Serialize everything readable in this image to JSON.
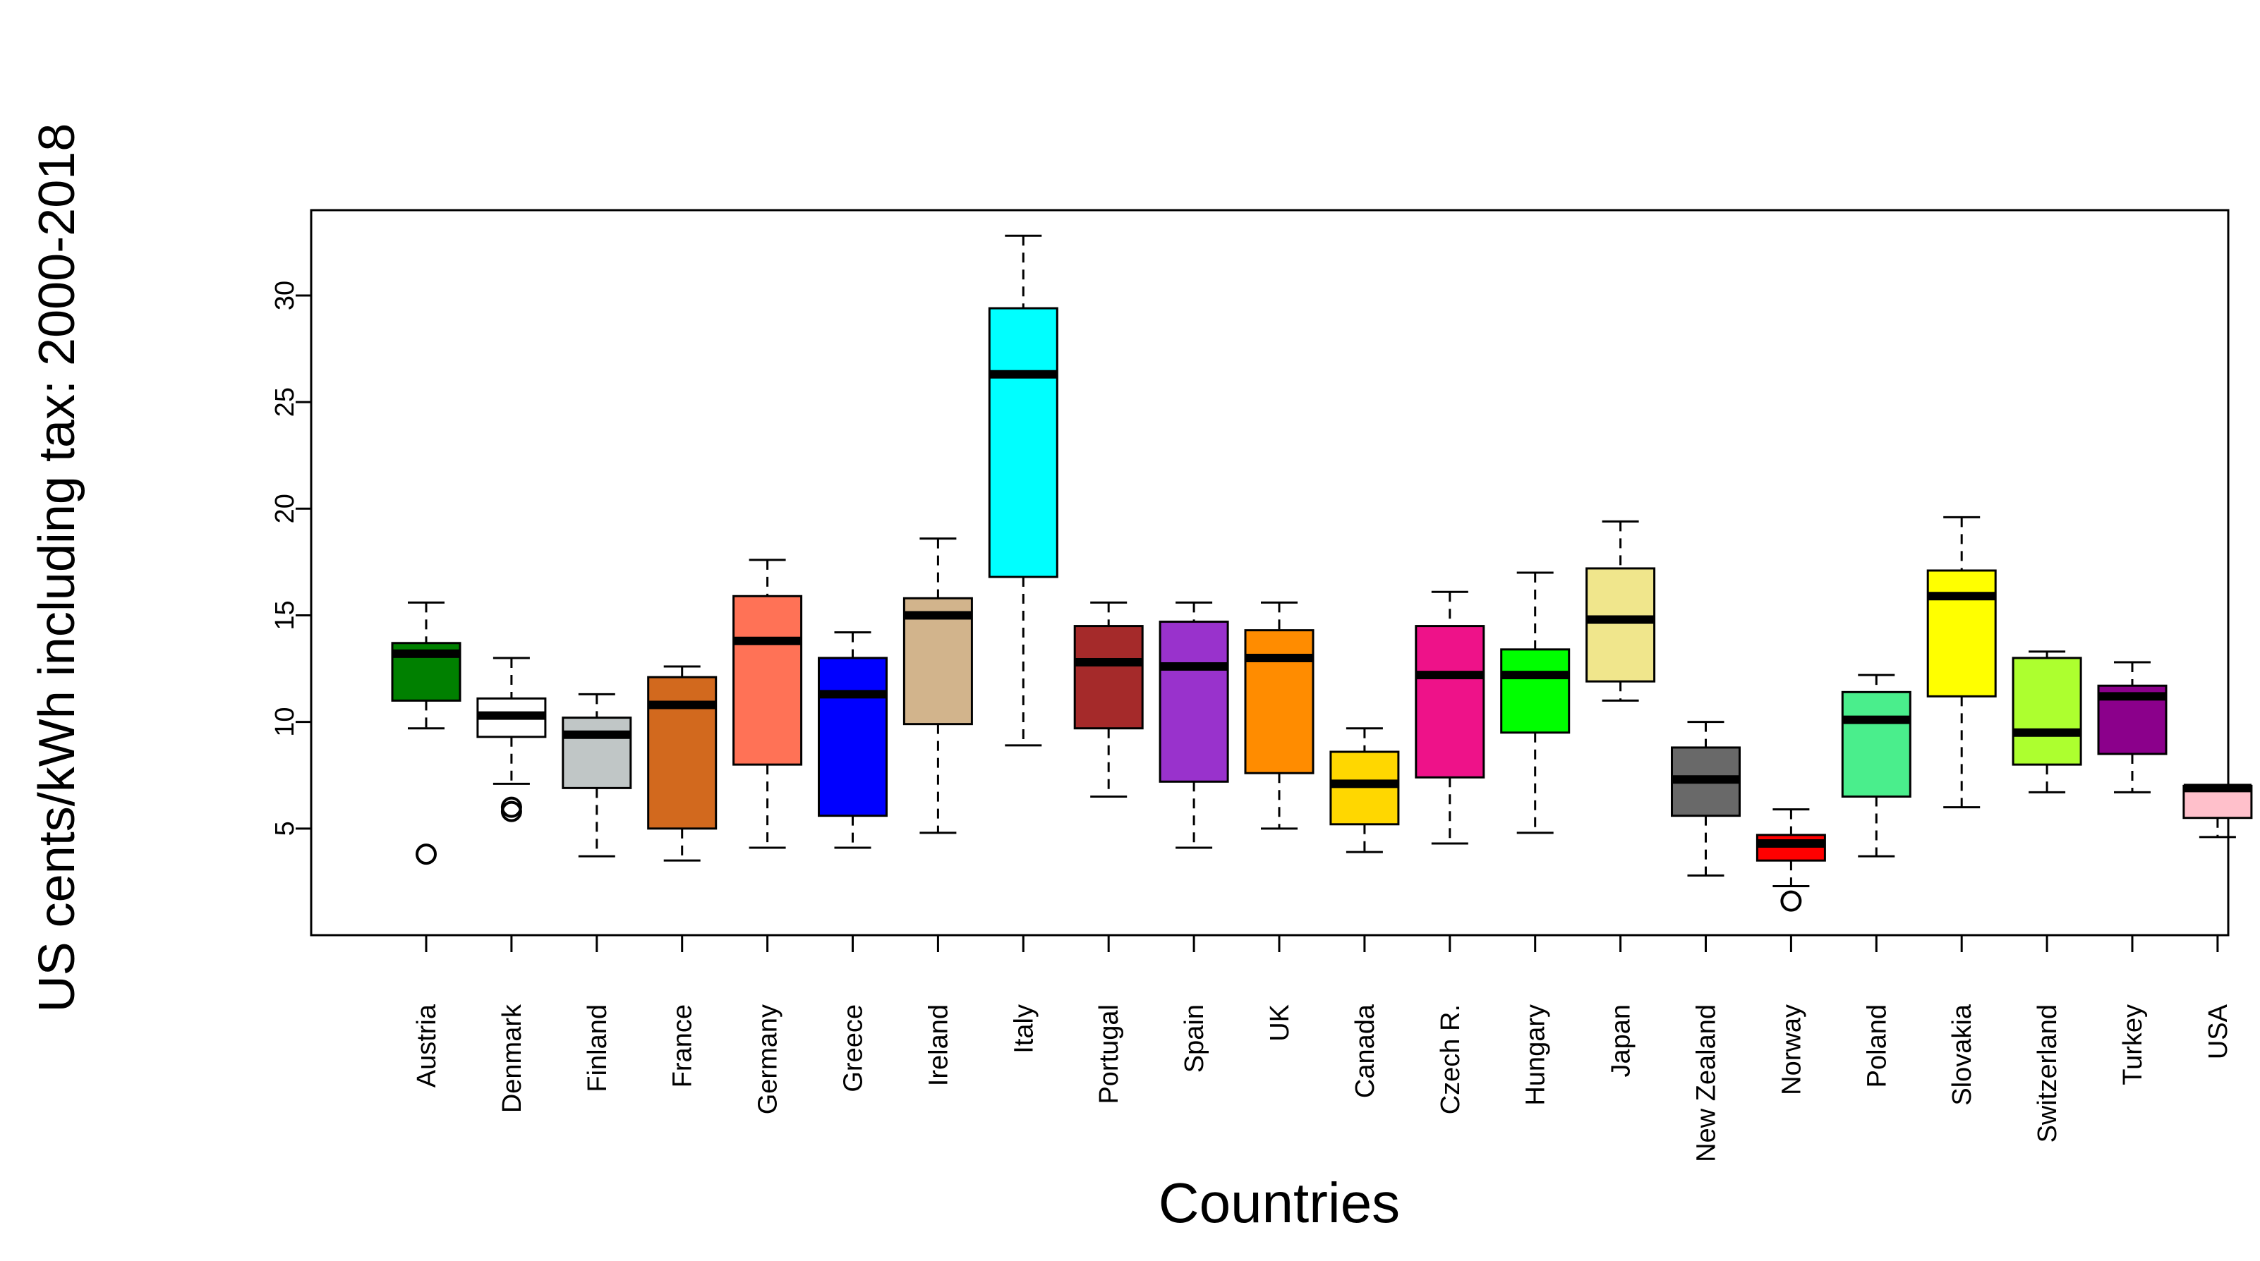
{
  "chart_data": {
    "type": "boxplot",
    "title": "",
    "xlabel": "Countries",
    "ylabel": "US cents/kWh including tax: 2000-2018",
    "ylim": [
      0,
      34
    ],
    "yticks": [
      5,
      10,
      15,
      20,
      25,
      30
    ],
    "grid": false,
    "categories": [
      "Austria",
      "Denmark",
      "Finland",
      "France",
      "Germany",
      "Greece",
      "Ireland",
      "Italy",
      "Portugal",
      "Spain",
      "UK",
      "Canada",
      "Czech R.",
      "Hungary",
      "Japan",
      "New Zealand",
      "Norway",
      "Poland",
      "Slovakia",
      "Switzerland",
      "Turkey",
      "USA"
    ],
    "boxes": [
      {
        "name": "Austria",
        "whisker_low": 9.7,
        "q1": 11.0,
        "median": 13.2,
        "q3": 13.7,
        "whisker_high": 15.6,
        "outliers": [
          3.8
        ],
        "color": "#008000"
      },
      {
        "name": "Denmark",
        "whisker_low": 7.1,
        "q1": 9.3,
        "median": 10.3,
        "q3": 11.1,
        "whisker_high": 13.0,
        "outliers": [
          5.8,
          6.0
        ],
        "color": "#ffffff"
      },
      {
        "name": "Finland",
        "whisker_low": 3.7,
        "q1": 6.9,
        "median": 9.4,
        "q3": 10.2,
        "whisker_high": 11.3,
        "outliers": [],
        "color": "#c0c6c6"
      },
      {
        "name": "France",
        "whisker_low": 3.5,
        "q1": 5.0,
        "median": 10.8,
        "q3": 12.1,
        "whisker_high": 12.6,
        "outliers": [],
        "color": "#d2691e"
      },
      {
        "name": "Germany",
        "whisker_low": 4.1,
        "q1": 8.0,
        "median": 13.8,
        "q3": 15.9,
        "whisker_high": 17.6,
        "outliers": [],
        "color": "#ff7256"
      },
      {
        "name": "Greece",
        "whisker_low": 4.1,
        "q1": 5.6,
        "median": 11.3,
        "q3": 13.0,
        "whisker_high": 14.2,
        "outliers": [],
        "color": "#0000ff"
      },
      {
        "name": "Ireland",
        "whisker_low": 4.8,
        "q1": 9.9,
        "median": 15.0,
        "q3": 15.8,
        "whisker_high": 18.6,
        "outliers": [],
        "color": "#d2b48c"
      },
      {
        "name": "Italy",
        "whisker_low": 8.9,
        "q1": 16.8,
        "median": 26.3,
        "q3": 29.4,
        "whisker_high": 32.8,
        "outliers": [],
        "color": "#00ffff"
      },
      {
        "name": "Portugal",
        "whisker_low": 6.5,
        "q1": 9.7,
        "median": 12.8,
        "q3": 14.5,
        "whisker_high": 15.6,
        "outliers": [],
        "color": "#a52a2a"
      },
      {
        "name": "Spain",
        "whisker_low": 4.1,
        "q1": 7.2,
        "median": 12.6,
        "q3": 14.7,
        "whisker_high": 15.6,
        "outliers": [],
        "color": "#9932cc"
      },
      {
        "name": "UK",
        "whisker_low": 5.0,
        "q1": 7.6,
        "median": 13.0,
        "q3": 14.3,
        "whisker_high": 15.6,
        "outliers": [],
        "color": "#ff8c00"
      },
      {
        "name": "Canada",
        "whisker_low": 3.9,
        "q1": 5.2,
        "median": 7.1,
        "q3": 8.6,
        "whisker_high": 9.7,
        "outliers": [],
        "color": "#ffd700"
      },
      {
        "name": "Czech R.",
        "whisker_low": 4.3,
        "q1": 7.4,
        "median": 12.2,
        "q3": 14.5,
        "whisker_high": 16.1,
        "outliers": [],
        "color": "#ee1289"
      },
      {
        "name": "Hungary",
        "whisker_low": 4.8,
        "q1": 9.5,
        "median": 12.2,
        "q3": 13.4,
        "whisker_high": 17.0,
        "outliers": [],
        "color": "#00ff00"
      },
      {
        "name": "Japan",
        "whisker_low": 11.0,
        "q1": 11.9,
        "median": 14.8,
        "q3": 17.2,
        "whisker_high": 19.4,
        "outliers": [],
        "color": "#f0e68c"
      },
      {
        "name": "New Zealand",
        "whisker_low": 2.8,
        "q1": 5.6,
        "median": 7.3,
        "q3": 8.8,
        "whisker_high": 10.0,
        "outliers": [],
        "color": "#696969"
      },
      {
        "name": "Norway",
        "whisker_low": 2.3,
        "q1": 3.5,
        "median": 4.3,
        "q3": 4.7,
        "whisker_high": 5.9,
        "outliers": [
          1.6
        ],
        "color": "#ff0000"
      },
      {
        "name": "Poland",
        "whisker_low": 3.7,
        "q1": 6.5,
        "median": 10.1,
        "q3": 11.4,
        "whisker_high": 12.2,
        "outliers": [],
        "color": "#4aee8c"
      },
      {
        "name": "Slovakia",
        "whisker_low": 6.0,
        "q1": 11.2,
        "median": 15.9,
        "q3": 17.1,
        "whisker_high": 19.6,
        "outliers": [],
        "color": "#ffff00"
      },
      {
        "name": "Switzerland",
        "whisker_low": 6.7,
        "q1": 8.0,
        "median": 9.5,
        "q3": 13.0,
        "whisker_high": 13.3,
        "outliers": [],
        "color": "#adff2f"
      },
      {
        "name": "Turkey",
        "whisker_low": 6.7,
        "q1": 8.5,
        "median": 11.2,
        "q3": 11.7,
        "whisker_high": 12.8,
        "outliers": [],
        "color": "#8b008b"
      },
      {
        "name": "USA",
        "whisker_low": 4.6,
        "q1": 5.5,
        "median": 6.9,
        "q3": 7.0,
        "whisker_high": 7.0,
        "outliers": [],
        "color": "#ffc0cb"
      }
    ]
  }
}
